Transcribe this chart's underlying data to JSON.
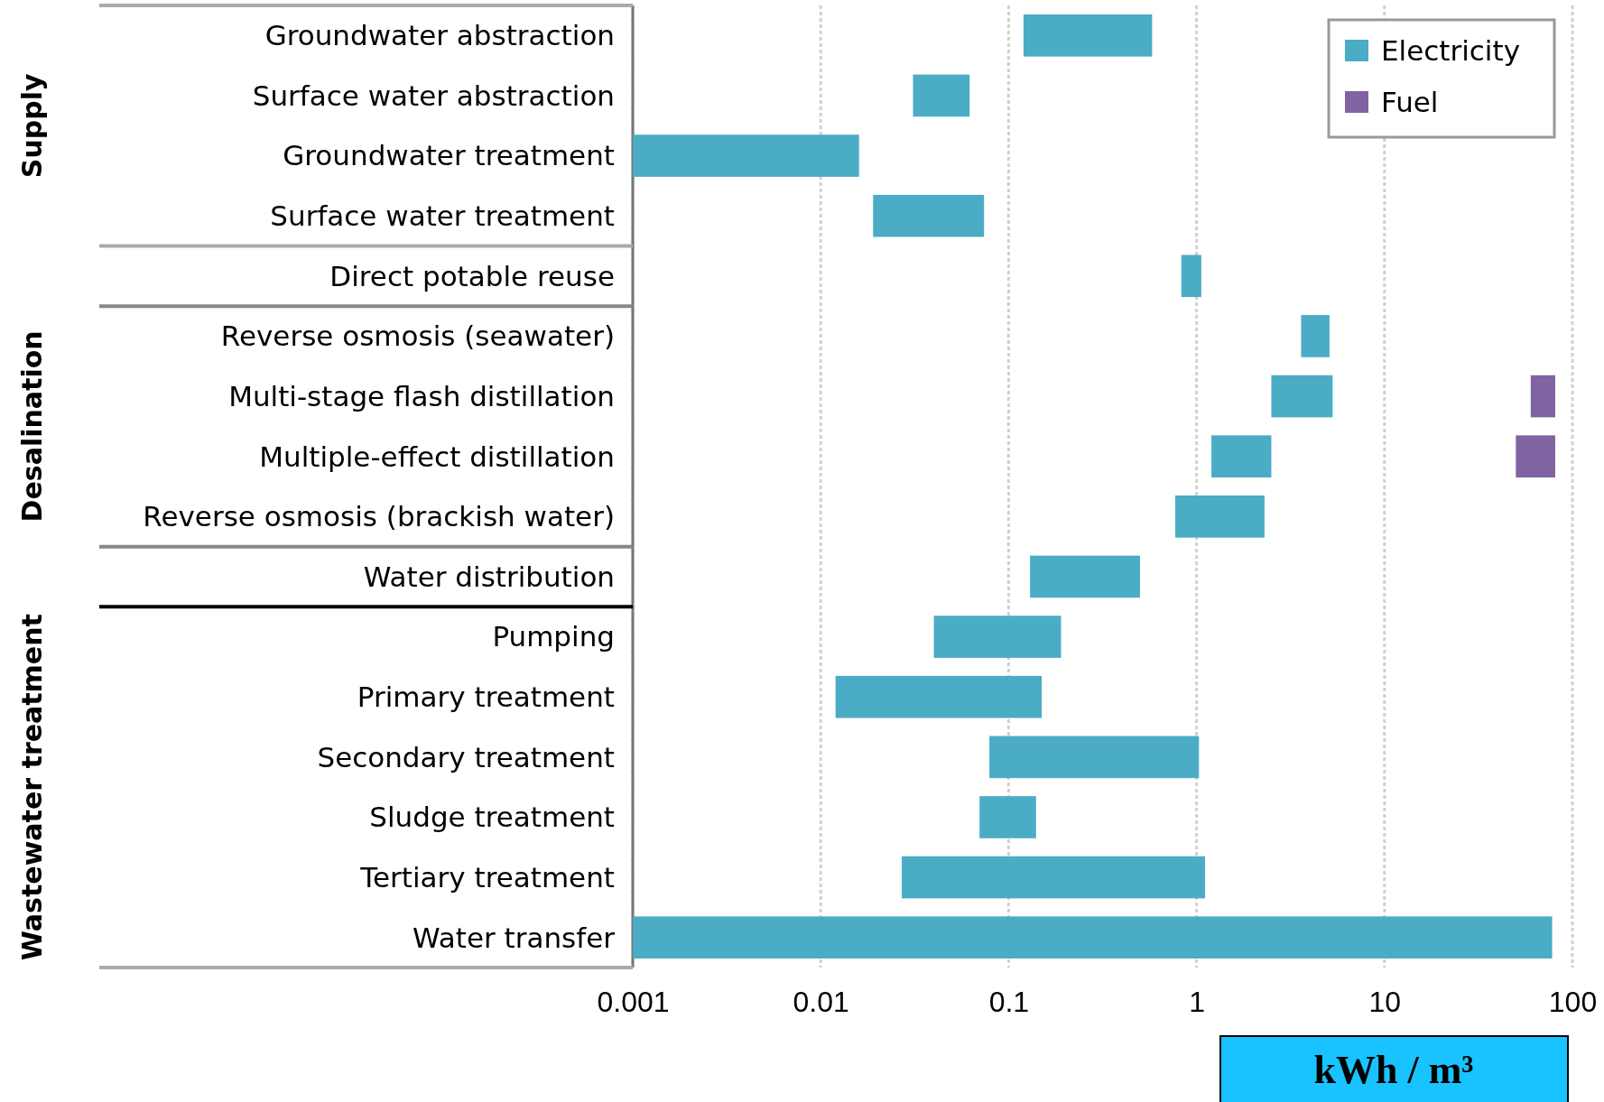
{
  "chart_data": {
    "type": "bar",
    "orientation": "horizontal",
    "xlabel": "kWh /  m³",
    "categories": [
      "Groundwater abstraction",
      "Surface water abstraction",
      "Groundwater treatment",
      "Surface water treatment",
      "Direct potable reuse",
      "Reverse osmosis (seawater)",
      "Multi-stage flash distillation",
      "Multiple-effect distillation",
      "Reverse osmosis (brackish water)",
      "Water distribution",
      "Pumping",
      "Primary treatment",
      "Secondary treatment",
      "Sludge treatment",
      "Tertiary treatment",
      "Water transfer"
    ],
    "series": [
      {
        "name": "Electricity",
        "color": "#4bacc6",
        "base": [
          0.12,
          0.031,
          0.001,
          0.019,
          0.83,
          3.6,
          2.5,
          1.2,
          0.77,
          0.13,
          0.04,
          0.012,
          0.079,
          0.07,
          0.027,
          0.001
        ],
        "values": [
          0.46,
          0.031,
          0.015,
          0.055,
          0.23,
          1.5,
          2.8,
          1.3,
          1.53,
          0.37,
          0.15,
          0.138,
          0.951,
          0.07,
          1.083,
          77.999
        ]
      },
      {
        "name": "Fuel",
        "color": "#8064a2",
        "base": [
          null,
          null,
          null,
          null,
          null,
          null,
          60,
          50,
          null,
          null,
          null,
          null,
          null,
          null,
          null,
          null
        ],
        "values": [
          null,
          null,
          null,
          null,
          null,
          null,
          21,
          31,
          null,
          null,
          null,
          null,
          null,
          null,
          null,
          null
        ]
      }
    ],
    "annotations": [
      "Supply",
      "Desalination",
      "Wastewater treatment"
    ],
    "log": "x",
    "xlim": [
      0.001,
      100
    ],
    "xticks": [
      0.001,
      0.01,
      0.1,
      1,
      10,
      100
    ],
    "grid": "x",
    "legend": "top right"
  }
}
